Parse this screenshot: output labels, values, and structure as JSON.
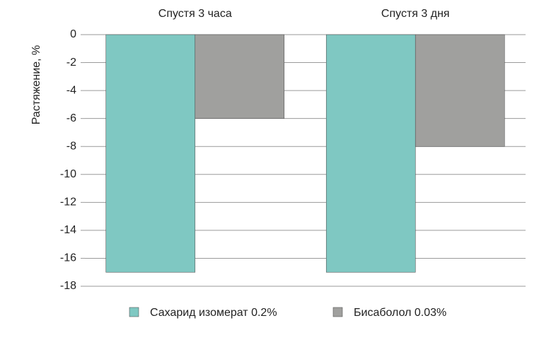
{
  "chart_data": {
    "type": "bar",
    "y_label": "Растяжение, %",
    "categories": [
      "Спустя 3 часа",
      "Спустя 3 дня"
    ],
    "series": [
      {
        "name": "Сахарид изомерат 0.2%",
        "color": "#7fc8c2",
        "values": [
          -17,
          -17
        ]
      },
      {
        "name": "Бисаболол 0.03%",
        "color": "#a0a09e",
        "values": [
          -6,
          -8
        ]
      }
    ],
    "ylim": [
      -18,
      0
    ],
    "yticks": [
      0,
      -2,
      -4,
      -6,
      -8,
      -10,
      -12,
      -14,
      -16,
      -18
    ],
    "grid": true
  }
}
